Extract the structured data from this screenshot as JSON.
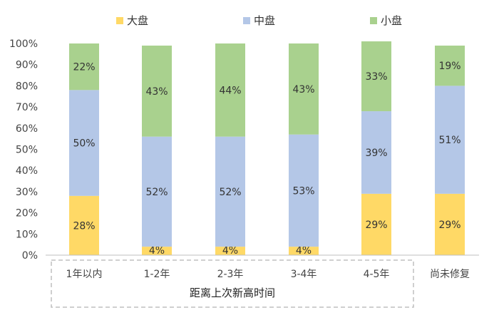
{
  "chart_data": {
    "type": "bar",
    "stacked": true,
    "normalized": true,
    "categories": [
      "1年以内",
      "1-2年",
      "2-3年",
      "3-4年",
      "4-5年",
      "尚未修复"
    ],
    "series": [
      {
        "name": "大盘",
        "color": "#FFD966",
        "values": [
          28,
          4,
          4,
          4,
          29,
          29
        ],
        "labels": [
          "28%",
          "4%",
          "4%",
          "4%",
          "29%",
          "29%"
        ]
      },
      {
        "name": "中盘",
        "color": "#B4C7E7",
        "values": [
          50,
          52,
          52,
          53,
          39,
          51
        ],
        "labels": [
          "50%",
          "52%",
          "52%",
          "53%",
          "39%",
          "51%"
        ]
      },
      {
        "name": "小盘",
        "color": "#A9D18E",
        "values": [
          22,
          43,
          44,
          43,
          33,
          19
        ],
        "labels": [
          "22%",
          "43%",
          "44%",
          "43%",
          "33%",
          "19%"
        ]
      }
    ],
    "y_ticks": [
      "0%",
      "10%",
      "20%",
      "30%",
      "40%",
      "50%",
      "60%",
      "70%",
      "80%",
      "90%",
      "100%"
    ],
    "ylim": [
      0,
      100
    ],
    "legend_position": "top",
    "grid": false,
    "group_title": "距离上次新高时间",
    "group_outline": "dashed"
  }
}
